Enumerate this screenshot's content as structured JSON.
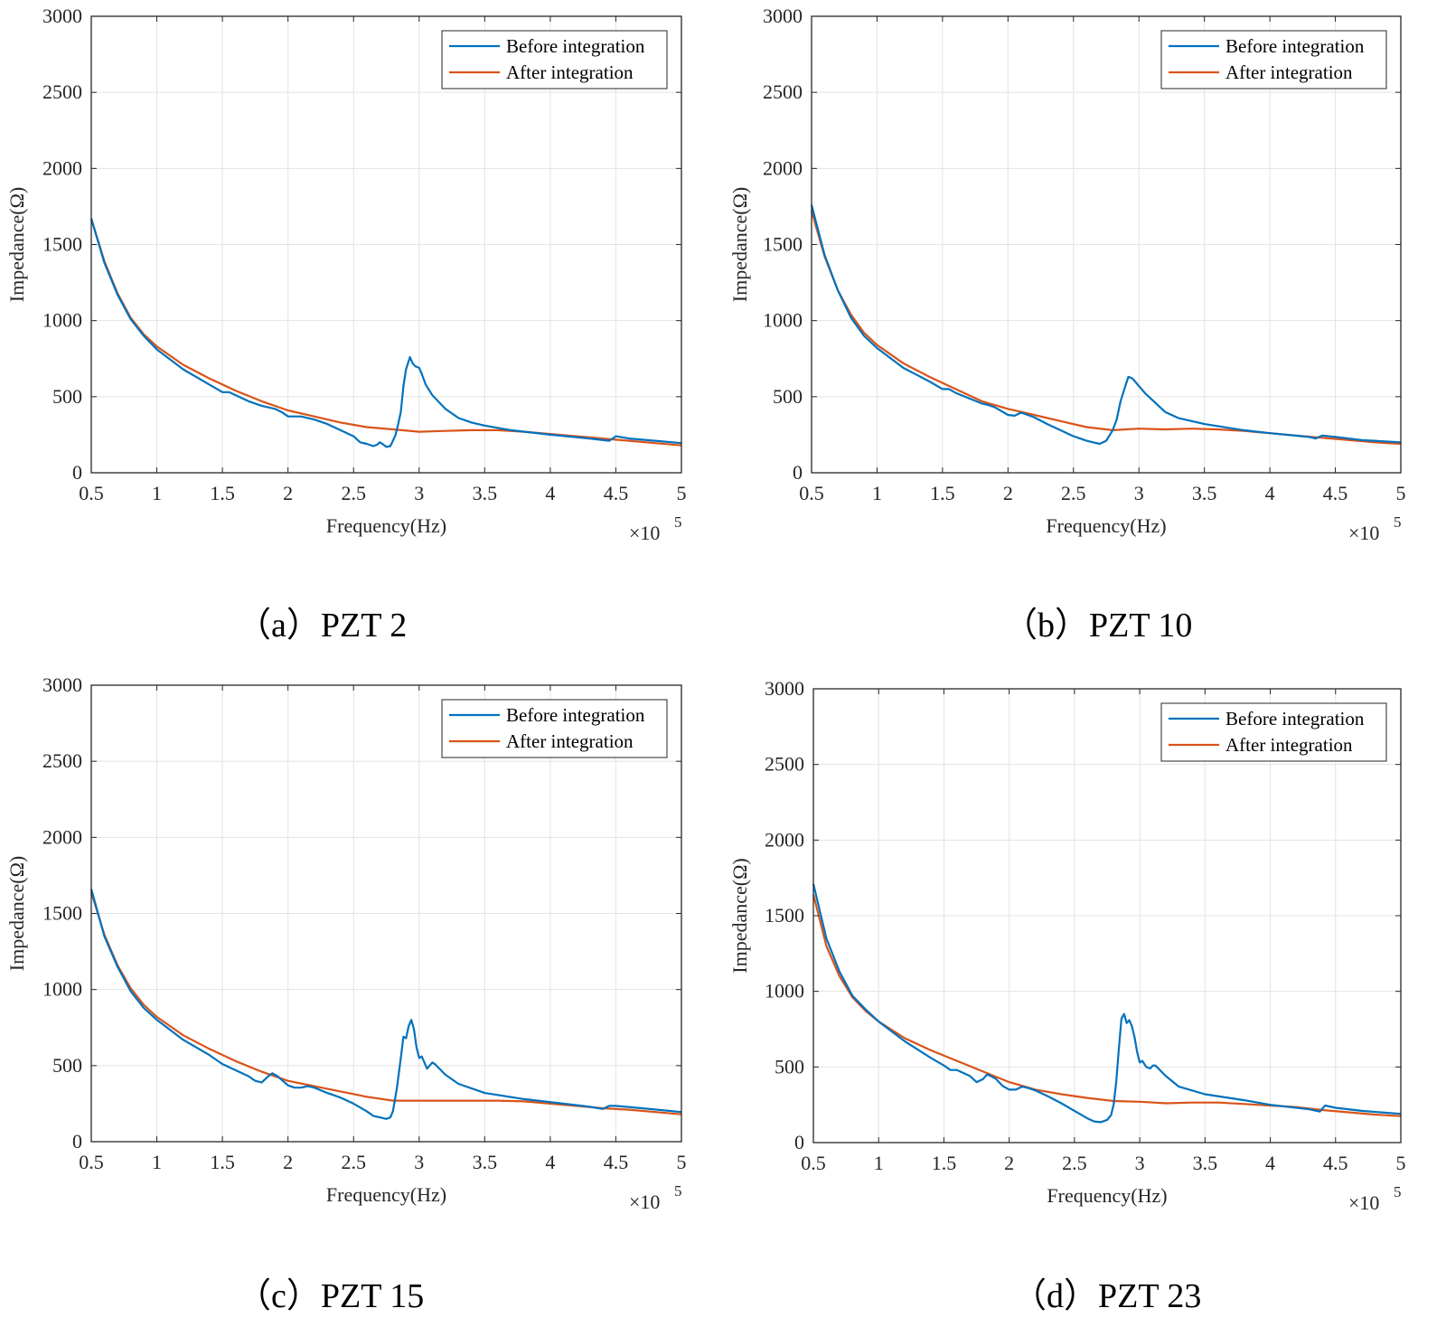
{
  "chart_data": [
    {
      "type": "line",
      "caption": "（a）PZT 2",
      "xlabel": "Frequency(Hz)",
      "ylabel": "Impedance(Ω)",
      "x_multiplier": "×10",
      "x_multiplier_exp": "5",
      "xlim": [
        0.5,
        5
      ],
      "ylim": [
        0,
        3000
      ],
      "xticks": [
        "0.5",
        "1",
        "1.5",
        "2",
        "2.5",
        "3",
        "3.5",
        "4",
        "4.5",
        "5"
      ],
      "yticks": [
        "0",
        "500",
        "1000",
        "1500",
        "2000",
        "2500",
        "3000"
      ],
      "grid": true,
      "legend_position": "top-right",
      "series": [
        {
          "name": "Before integration",
          "color": "#0072BD",
          "x": [
            0.5,
            0.6,
            0.7,
            0.8,
            0.9,
            1.0,
            1.2,
            1.4,
            1.5,
            1.55,
            1.6,
            1.7,
            1.8,
            1.9,
            1.95,
            2.0,
            2.05,
            2.1,
            2.15,
            2.2,
            2.3,
            2.4,
            2.5,
            2.55,
            2.6,
            2.65,
            2.68,
            2.7,
            2.72,
            2.75,
            2.78,
            2.8,
            2.82,
            2.84,
            2.86,
            2.88,
            2.9,
            2.93,
            2.95,
            2.97,
            3.0,
            3.02,
            3.05,
            3.1,
            3.2,
            3.3,
            3.4,
            3.5,
            3.7,
            4.0,
            4.3,
            4.45,
            4.5,
            4.6,
            4.8,
            5.0
          ],
          "y": [
            1670,
            1380,
            1170,
            1010,
            900,
            810,
            680,
            580,
            530,
            530,
            510,
            470,
            440,
            420,
            400,
            370,
            370,
            370,
            360,
            350,
            320,
            280,
            240,
            200,
            190,
            175,
            185,
            200,
            190,
            170,
            175,
            210,
            250,
            320,
            400,
            570,
            680,
            760,
            720,
            700,
            690,
            650,
            580,
            510,
            420,
            360,
            330,
            310,
            280,
            250,
            225,
            210,
            240,
            225,
            210,
            195
          ]
        },
        {
          "name": "After integration",
          "color": "#D95319",
          "x": [
            0.5,
            0.6,
            0.7,
            0.8,
            0.9,
            1.0,
            1.2,
            1.4,
            1.6,
            1.8,
            2.0,
            2.2,
            2.4,
            2.6,
            2.8,
            3.0,
            3.2,
            3.4,
            3.6,
            3.8,
            4.0,
            4.2,
            4.4,
            4.6,
            4.8,
            5.0
          ],
          "y": [
            1670,
            1390,
            1180,
            1020,
            910,
            830,
            710,
            620,
            540,
            470,
            410,
            370,
            330,
            300,
            285,
            270,
            275,
            280,
            280,
            270,
            255,
            240,
            225,
            210,
            195,
            180
          ]
        }
      ]
    },
    {
      "type": "line",
      "caption": "（b）PZT 10",
      "xlabel": "Frequency(Hz)",
      "ylabel": "Impedance(Ω)",
      "x_multiplier": "×10",
      "x_multiplier_exp": "5",
      "xlim": [
        0.5,
        5
      ],
      "ylim": [
        0,
        3000
      ],
      "xticks": [
        "0.5",
        "1",
        "1.5",
        "2",
        "2.5",
        "3",
        "3.5",
        "4",
        "4.5",
        "5"
      ],
      "yticks": [
        "0",
        "500",
        "1000",
        "1500",
        "2000",
        "2500",
        "3000"
      ],
      "grid": true,
      "legend_position": "top-right",
      "series": [
        {
          "name": "Before integration",
          "color": "#0072BD",
          "x": [
            0.5,
            0.6,
            0.7,
            0.8,
            0.9,
            1.0,
            1.2,
            1.4,
            1.5,
            1.55,
            1.6,
            1.7,
            1.8,
            1.85,
            1.9,
            2.0,
            2.05,
            2.1,
            2.15,
            2.2,
            2.3,
            2.4,
            2.5,
            2.6,
            2.65,
            2.7,
            2.75,
            2.8,
            2.83,
            2.86,
            2.9,
            2.92,
            2.95,
            2.97,
            3.0,
            3.03,
            3.05,
            3.1,
            3.2,
            3.3,
            3.5,
            3.8,
            4.0,
            4.3,
            4.35,
            4.4,
            4.5,
            4.7,
            5.0
          ],
          "y": [
            1760,
            1430,
            1200,
            1020,
            900,
            820,
            690,
            600,
            550,
            550,
            525,
            490,
            455,
            445,
            430,
            380,
            375,
            395,
            380,
            365,
            320,
            280,
            240,
            210,
            200,
            190,
            210,
            280,
            350,
            470,
            580,
            630,
            620,
            600,
            570,
            540,
            520,
            480,
            400,
            360,
            320,
            280,
            260,
            235,
            225,
            245,
            235,
            215,
            200
          ]
        },
        {
          "name": "After integration",
          "color": "#D95319",
          "x": [
            0.5,
            0.6,
            0.7,
            0.8,
            0.9,
            1.0,
            1.2,
            1.4,
            1.6,
            1.8,
            2.0,
            2.2,
            2.4,
            2.6,
            2.8,
            3.0,
            3.2,
            3.4,
            3.6,
            3.8,
            4.0,
            4.2,
            4.4,
            4.6,
            4.8,
            5.0
          ],
          "y": [
            1720,
            1420,
            1200,
            1040,
            920,
            840,
            720,
            630,
            550,
            470,
            420,
            380,
            340,
            300,
            280,
            290,
            285,
            290,
            285,
            275,
            260,
            245,
            230,
            215,
            200,
            190
          ]
        }
      ]
    },
    {
      "type": "line",
      "caption": "（c）PZT 15",
      "xlabel": "Frequency(Hz)",
      "ylabel": "Impedance(Ω)",
      "x_multiplier": "×10",
      "x_multiplier_exp": "5",
      "xlim": [
        0.5,
        5
      ],
      "ylim": [
        0,
        3000
      ],
      "xticks": [
        "0.5",
        "1",
        "1.5",
        "2",
        "2.5",
        "3",
        "3.5",
        "4",
        "4.5",
        "5"
      ],
      "yticks": [
        "0",
        "500",
        "1000",
        "1500",
        "2000",
        "2500",
        "3000"
      ],
      "grid": true,
      "legend_position": "top-right",
      "series": [
        {
          "name": "Before integration",
          "color": "#0072BD",
          "x": [
            0.5,
            0.6,
            0.7,
            0.8,
            0.9,
            1.0,
            1.2,
            1.4,
            1.5,
            1.6,
            1.7,
            1.75,
            1.8,
            1.85,
            1.88,
            1.92,
            1.96,
            2.0,
            2.05,
            2.1,
            2.15,
            2.2,
            2.3,
            2.4,
            2.5,
            2.6,
            2.65,
            2.7,
            2.75,
            2.78,
            2.8,
            2.83,
            2.86,
            2.88,
            2.9,
            2.92,
            2.94,
            2.96,
            2.98,
            3.0,
            3.02,
            3.04,
            3.06,
            3.08,
            3.1,
            3.12,
            3.2,
            3.3,
            3.5,
            3.8,
            4.0,
            4.3,
            4.4,
            4.45,
            4.5,
            4.7,
            5.0
          ],
          "y": [
            1660,
            1350,
            1150,
            990,
            880,
            800,
            670,
            570,
            510,
            470,
            430,
            400,
            390,
            430,
            450,
            430,
            400,
            370,
            355,
            355,
            365,
            355,
            320,
            290,
            250,
            200,
            170,
            160,
            150,
            160,
            200,
            350,
            550,
            690,
            680,
            760,
            800,
            740,
            620,
            550,
            560,
            520,
            480,
            500,
            520,
            510,
            440,
            380,
            320,
            280,
            260,
            230,
            215,
            235,
            235,
            220,
            195
          ]
        },
        {
          "name": "After integration",
          "color": "#D95319",
          "x": [
            0.5,
            0.6,
            0.7,
            0.8,
            0.9,
            1.0,
            1.2,
            1.4,
            1.6,
            1.8,
            2.0,
            2.2,
            2.4,
            2.6,
            2.8,
            3.0,
            3.2,
            3.4,
            3.6,
            3.8,
            4.0,
            4.2,
            4.4,
            4.6,
            4.8,
            5.0
          ],
          "y": [
            1640,
            1360,
            1160,
            1010,
            900,
            820,
            700,
            610,
            530,
            460,
            400,
            365,
            330,
            295,
            270,
            270,
            270,
            270,
            270,
            265,
            250,
            235,
            220,
            210,
            195,
            180
          ]
        }
      ]
    },
    {
      "type": "line",
      "caption": "（d）PZT 23",
      "xlabel": "Frequency(Hz)",
      "ylabel": "Impedance(Ω)",
      "x_multiplier": "×10",
      "x_multiplier_exp": "5",
      "xlim": [
        0.5,
        5
      ],
      "ylim": [
        0,
        3000
      ],
      "xticks": [
        "0.5",
        "1",
        "1.5",
        "2",
        "2.5",
        "3",
        "3.5",
        "4",
        "4.5",
        "5"
      ],
      "yticks": [
        "0",
        "500",
        "1000",
        "1500",
        "2000",
        "2500",
        "3000"
      ],
      "grid": true,
      "legend_position": "top-right",
      "series": [
        {
          "name": "Before integration",
          "color": "#0072BD",
          "x": [
            0.5,
            0.6,
            0.7,
            0.8,
            0.9,
            1.0,
            1.2,
            1.4,
            1.5,
            1.55,
            1.6,
            1.7,
            1.75,
            1.8,
            1.83,
            1.86,
            1.9,
            1.95,
            2.0,
            2.05,
            2.1,
            2.15,
            2.2,
            2.3,
            2.4,
            2.5,
            2.6,
            2.65,
            2.7,
            2.75,
            2.78,
            2.8,
            2.82,
            2.84,
            2.86,
            2.88,
            2.9,
            2.92,
            2.94,
            2.96,
            2.98,
            3.0,
            3.02,
            3.05,
            3.08,
            3.1,
            3.12,
            3.2,
            3.3,
            3.5,
            3.8,
            4.0,
            4.3,
            4.38,
            4.42,
            4.5,
            4.7,
            5.0
          ],
          "y": [
            1710,
            1350,
            1130,
            970,
            880,
            800,
            670,
            560,
            510,
            480,
            480,
            440,
            400,
            420,
            450,
            440,
            420,
            375,
            350,
            350,
            370,
            360,
            345,
            305,
            260,
            210,
            160,
            140,
            135,
            150,
            180,
            250,
            400,
            620,
            820,
            850,
            790,
            810,
            770,
            700,
            600,
            530,
            540,
            500,
            490,
            510,
            510,
            440,
            370,
            320,
            280,
            250,
            220,
            205,
            245,
            230,
            210,
            190
          ]
        },
        {
          "name": "After integration",
          "color": "#D95319",
          "x": [
            0.5,
            0.6,
            0.7,
            0.8,
            0.9,
            1.0,
            1.2,
            1.4,
            1.6,
            1.8,
            2.0,
            2.2,
            2.4,
            2.6,
            2.8,
            3.0,
            3.2,
            3.4,
            3.6,
            3.8,
            4.0,
            4.2,
            4.4,
            4.6,
            4.8,
            5.0
          ],
          "y": [
            1640,
            1300,
            1100,
            960,
            870,
            800,
            690,
            610,
            540,
            470,
            400,
            350,
            320,
            295,
            275,
            270,
            260,
            265,
            265,
            255,
            245,
            235,
            215,
            200,
            185,
            175
          ]
        }
      ]
    }
  ]
}
